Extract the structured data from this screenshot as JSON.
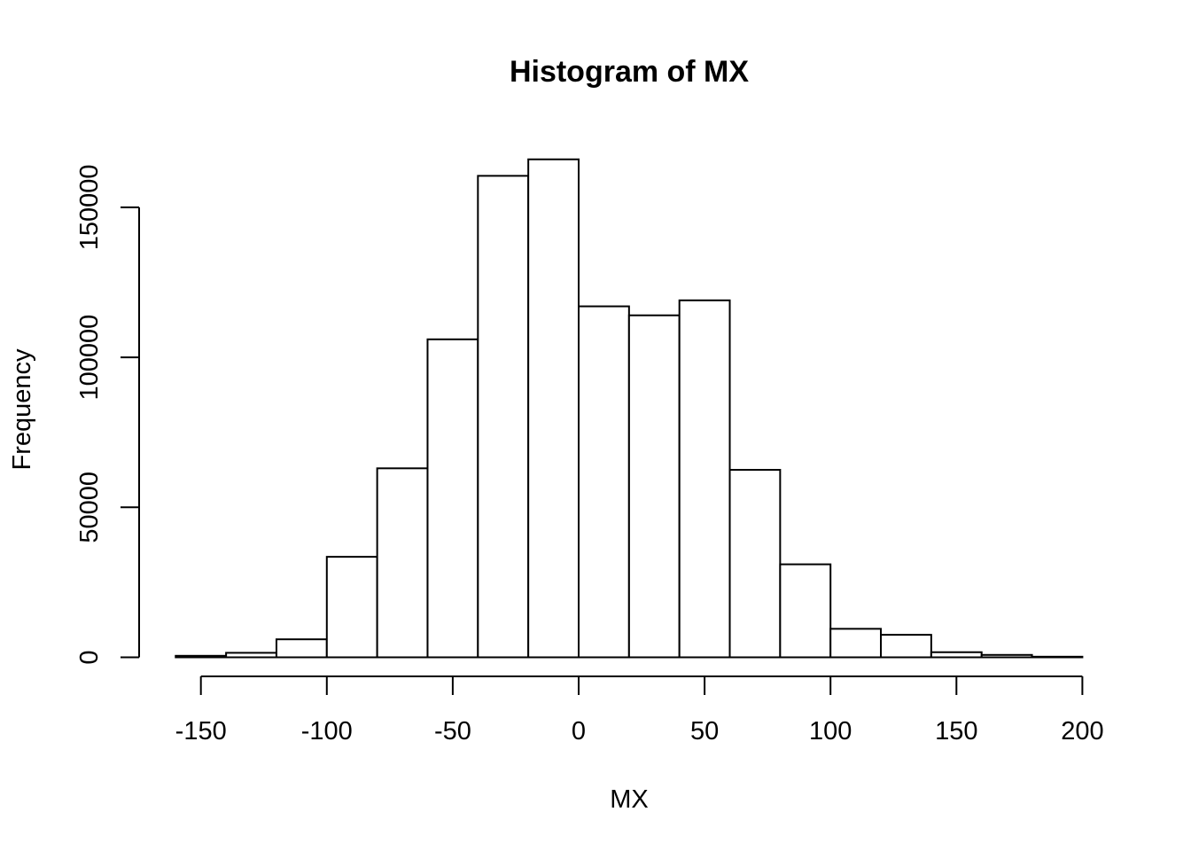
{
  "chart_data": {
    "type": "bar",
    "title": "Histogram of MX",
    "xlabel": "MX",
    "ylabel": "Frequency",
    "bin_edges": [
      -160,
      -140,
      -120,
      -100,
      -80,
      -60,
      -40,
      -20,
      0,
      20,
      40,
      60,
      80,
      100,
      120,
      140,
      160,
      180,
      200
    ],
    "values": [
      500,
      1500,
      6000,
      33500,
      63000,
      106000,
      160500,
      166000,
      117000,
      114000,
      119000,
      62500,
      31000,
      9500,
      7500,
      1700,
      800,
      200
    ],
    "xlim": [
      -160,
      200
    ],
    "ylim": [
      0,
      166000
    ],
    "x_ticks": [
      -150,
      -100,
      -50,
      0,
      50,
      100,
      150,
      200
    ],
    "y_ticks": [
      0,
      50000,
      100000,
      150000
    ],
    "x_tick_labels": [
      "-150",
      "-100",
      "-50",
      "0",
      "50",
      "100",
      "150",
      "200"
    ],
    "y_tick_labels": [
      "0",
      "50000",
      "100000",
      "150000"
    ],
    "grid": false,
    "legend": "none"
  }
}
